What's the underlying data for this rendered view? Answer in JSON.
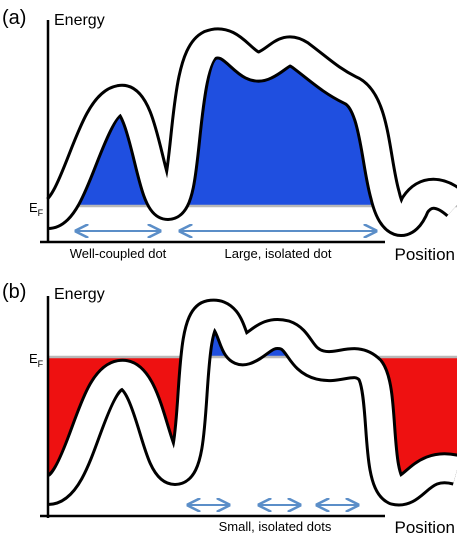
{
  "panels": [
    {
      "label": "(a)",
      "y_axis": "Energy",
      "x_axis": "Position",
      "fermi_level": {
        "symbol": "E",
        "subscript": "F"
      },
      "annotations": [
        "Well-coupled dot",
        "Large, isolated dot"
      ]
    },
    {
      "label": "(b)",
      "y_axis": "Energy",
      "x_axis": "Position",
      "fermi_level": {
        "symbol": "E",
        "subscript": "F"
      },
      "annotations": [
        "Small, isolated dots"
      ]
    }
  ]
}
